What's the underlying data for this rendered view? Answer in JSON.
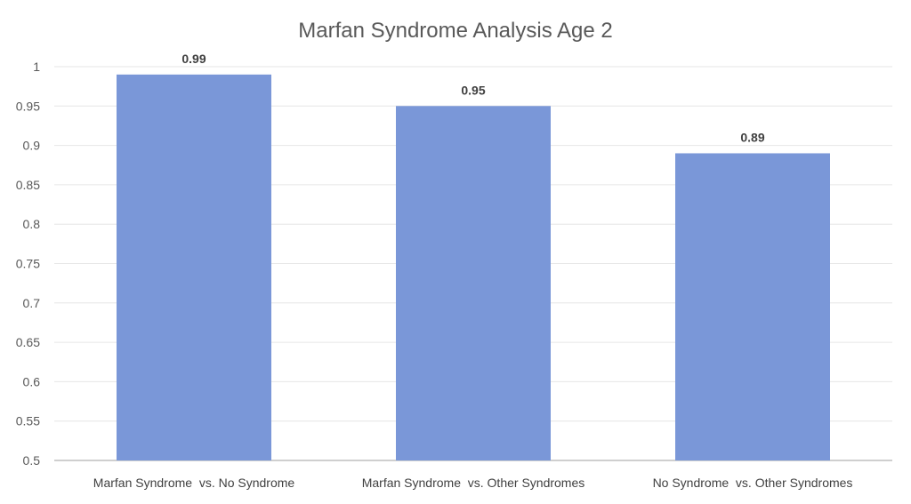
{
  "chart_data": {
    "type": "bar",
    "title": "Marfan Syndrome Analysis Age 2",
    "categories": [
      "Marfan Syndrome  vs. No Syndrome",
      "Marfan Syndrome  vs. Other Syndromes",
      "No Syndrome  vs. Other Syndromes"
    ],
    "values": [
      0.99,
      0.95,
      0.89
    ],
    "data_labels": [
      "0.99",
      "0.95",
      "0.89"
    ],
    "xlabel": "",
    "ylabel": "",
    "ylim": [
      0.5,
      1
    ],
    "yticks": [
      "0.5",
      "0.55",
      "0.6",
      "0.65",
      "0.7",
      "0.75",
      "0.8",
      "0.85",
      "0.9",
      "0.95",
      "1"
    ],
    "grid": true,
    "legend": "none",
    "bar_color": "#7a97d8"
  }
}
